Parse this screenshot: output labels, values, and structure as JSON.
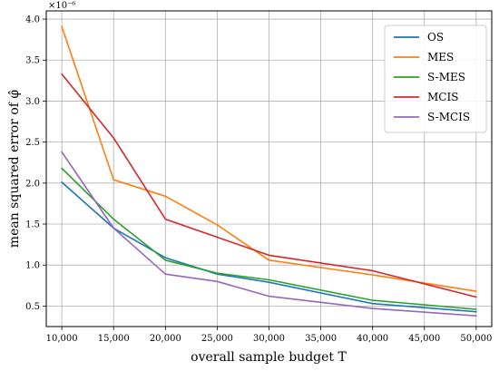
{
  "chart_data": {
    "type": "line",
    "x": [
      10000,
      15000,
      20000,
      25000,
      30000,
      35000,
      40000,
      45000,
      50000
    ],
    "x_tick_labels": [
      "10,000",
      "15,000",
      "20,000",
      "25,000",
      "30,000",
      "35,000",
      "40,000",
      "45,000",
      "50,000"
    ],
    "series": [
      {
        "name": "OS",
        "color": "#1f77b4",
        "values": [
          2.01,
          1.45,
          1.09,
          0.89,
          0.79,
          null,
          0.53,
          null,
          0.43
        ]
      },
      {
        "name": "MES",
        "color": "#ff7f0e",
        "values": [
          3.91,
          2.04,
          1.84,
          1.49,
          1.06,
          null,
          0.88,
          null,
          0.68
        ]
      },
      {
        "name": "S-MES",
        "color": "#2ca02c",
        "values": [
          2.18,
          1.56,
          1.06,
          0.9,
          0.82,
          null,
          0.57,
          null,
          0.46
        ]
      },
      {
        "name": "MCIS",
        "color": "#d62728",
        "values": [
          3.33,
          2.55,
          1.56,
          1.34,
          1.12,
          null,
          0.93,
          null,
          0.61
        ]
      },
      {
        "name": "S-MCIS",
        "color": "#9467bd",
        "values": [
          2.38,
          1.45,
          0.89,
          0.8,
          0.62,
          null,
          0.47,
          null,
          0.38
        ]
      }
    ],
    "x_values_present": [
      10000,
      15000,
      20000,
      25000,
      30000,
      40000,
      50000
    ],
    "y_ticks": [
      0.5,
      1.0,
      1.5,
      2.0,
      2.5,
      3.0,
      3.5,
      4.0
    ],
    "y_tick_labels": [
      "0.5",
      "1.0",
      "1.5",
      "2.0",
      "2.5",
      "3.0",
      "3.5",
      "4.0"
    ],
    "xlim": [
      8500,
      51500
    ],
    "ylim": [
      0.25,
      4.1
    ],
    "y_multiplier_label": "×10⁻⁶",
    "xlabel": "overall sample budget T",
    "ylabel": "mean squared error of φ̂",
    "grid": true,
    "legend_position": "top-right"
  }
}
